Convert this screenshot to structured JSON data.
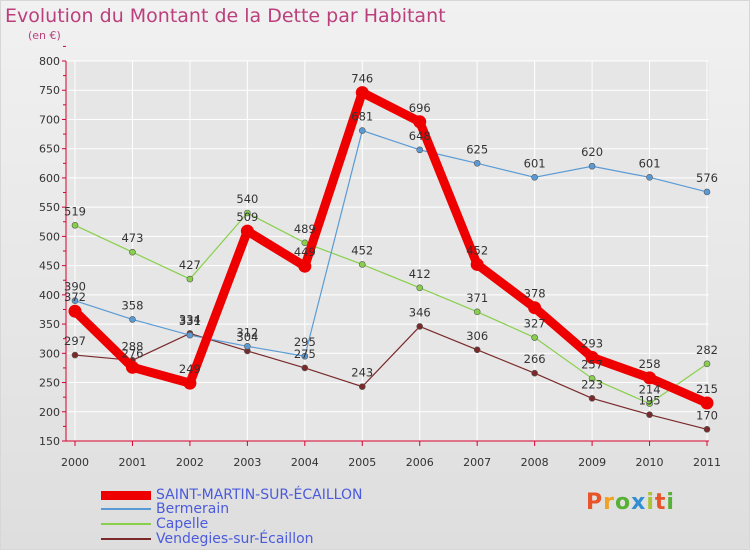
{
  "title": "Evolution du Montant de la Dette par Habitant",
  "unit_label": "(en €)",
  "logo": {
    "text": "Proxiti",
    "colors": [
      "#e8542a",
      "#f0a221",
      "#57b134",
      "#2f8fd4",
      "#a8c534",
      "#e8542a",
      "#57b134"
    ]
  },
  "colors": {
    "title": "#bb3f7c",
    "axis": "#d8002c",
    "grid": "#ffffff",
    "legend_text": "#4b5bdc"
  },
  "chart_data": {
    "type": "line",
    "title": "Evolution du Montant de la Dette par Habitant",
    "ylabel": "(en €)",
    "x": [
      "2000",
      "2001",
      "2002",
      "2003",
      "2004",
      "2005",
      "2006",
      "2007",
      "2008",
      "2009",
      "2010",
      "2011"
    ],
    "ylim": [
      150,
      800
    ],
    "yticks": [
      150,
      200,
      250,
      300,
      350,
      400,
      450,
      500,
      550,
      600,
      650,
      700,
      750,
      800
    ],
    "grid": true,
    "legend_position": "bottom-left",
    "series": [
      {
        "name": "SAINT-MARTIN-SUR-ÉCAILLON",
        "color": "#ee0000",
        "values": [
          372,
          276,
          249,
          509,
          449,
          746,
          696,
          452,
          378,
          293,
          258,
          215
        ]
      },
      {
        "name": "Bermerain",
        "color": "#5b9bd5",
        "values": [
          390,
          358,
          331,
          312,
          295,
          681,
          648,
          625,
          601,
          620,
          601,
          576
        ]
      },
      {
        "name": "Capelle",
        "color": "#88d04b",
        "values": [
          519,
          473,
          427,
          540,
          489,
          452,
          412,
          371,
          327,
          257,
          214,
          282
        ]
      },
      {
        "name": "Vendegies-sur-Écaillon",
        "color": "#7a2a2a",
        "values": [
          297,
          288,
          334,
          304,
          275,
          243,
          346,
          306,
          266,
          223,
          195,
          170
        ]
      }
    ]
  }
}
